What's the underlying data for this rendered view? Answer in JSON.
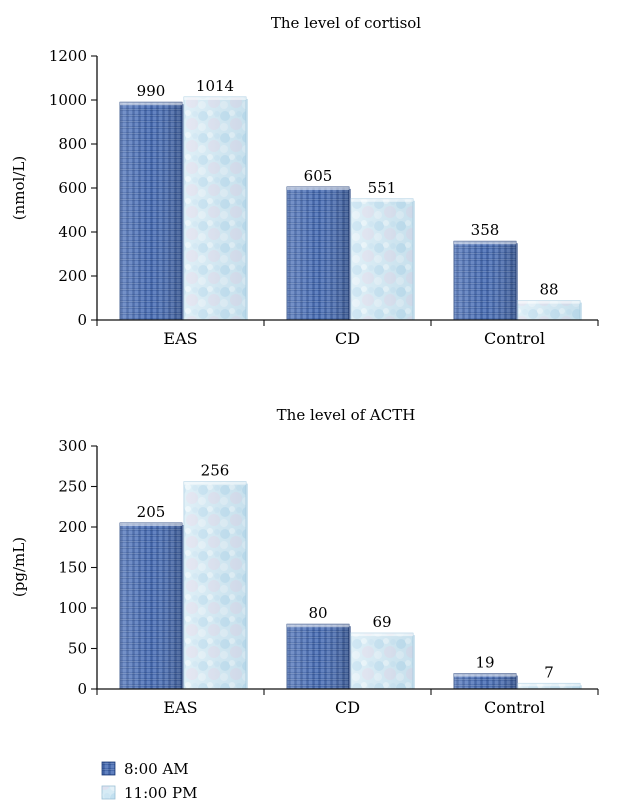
{
  "chart_data": [
    {
      "type": "bar",
      "title": "The level of cortisol",
      "ylabel": "(nmol/L)",
      "xlabel": "",
      "categories": [
        "EAS",
        "CD",
        "Control"
      ],
      "ylim": [
        0,
        1200
      ],
      "yticks": [
        0,
        200,
        400,
        600,
        800,
        1000,
        1200
      ],
      "series": [
        {
          "name": "8:00 AM",
          "values": [
            990,
            605,
            358
          ]
        },
        {
          "name": "11:00 PM",
          "values": [
            1014,
            551,
            88
          ]
        }
      ],
      "data_labels": true,
      "grid": false,
      "legend": "bottom-left"
    },
    {
      "type": "bar",
      "title": "The level of ACTH",
      "ylabel": "(pg/mL)",
      "xlabel": "",
      "categories": [
        "EAS",
        "CD",
        "Control"
      ],
      "ylim": [
        0,
        300
      ],
      "yticks": [
        0,
        50,
        100,
        150,
        200,
        250,
        300
      ],
      "series": [
        {
          "name": "8:00 AM",
          "values": [
            205,
            80,
            19
          ]
        },
        {
          "name": "11:00 PM",
          "values": [
            256,
            69,
            7
          ]
        }
      ],
      "data_labels": true,
      "grid": false,
      "legend": "bottom-left"
    }
  ],
  "legend": {
    "items": [
      {
        "label": "8:00 AM"
      },
      {
        "label": "11:00 PM"
      }
    ]
  },
  "colors": {
    "series_am": "#3f62a3",
    "series_am_dark": "#24427d",
    "series_pm": "#cfe6f3",
    "series_pm_dark": "#a9cde2",
    "axis": "#111111"
  }
}
